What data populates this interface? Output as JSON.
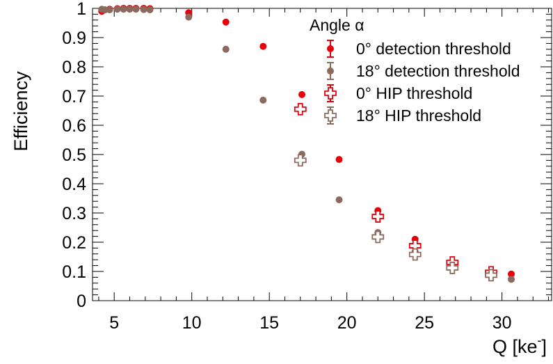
{
  "chart_data": {
    "type": "scatter",
    "xlabel": "Q [ke",
    "xlabel_sup": "-",
    "ylabel": "Efficiency",
    "xlim": [
      3.6,
      33.2
    ],
    "ylim": [
      0,
      1
    ],
    "x_ticks": [
      5,
      10,
      15,
      20,
      25,
      30
    ],
    "y_ticks": [
      0,
      0.1,
      0.2,
      0.3,
      0.4,
      0.5,
      0.6,
      0.7,
      0.8,
      0.9,
      1
    ],
    "y_tick_labels": [
      "0",
      "0.1",
      "0.2",
      "0.3",
      "0.4",
      "0.5",
      "0.6",
      "0.7",
      "0.8",
      "0.9",
      "1"
    ],
    "grid": false,
    "legend": {
      "title": "Angle α",
      "position": "top-right"
    },
    "series": [
      {
        "name": "0° detection threshold",
        "marker": "filled-circle",
        "color": "#e8000b",
        "points": [
          [
            4.2,
            0.99
          ],
          [
            4.4,
            0.995
          ],
          [
            4.7,
            0.997
          ],
          [
            5.2,
            0.999
          ],
          [
            5.6,
            1.0
          ],
          [
            6.0,
            1.0
          ],
          [
            6.4,
            1.0
          ],
          [
            6.9,
            1.0
          ],
          [
            7.3,
            0.999
          ],
          [
            9.8,
            0.985
          ],
          [
            12.2,
            0.953
          ],
          [
            14.6,
            0.87
          ],
          [
            17.1,
            0.705
          ],
          [
            19.5,
            0.483
          ],
          [
            22.0,
            0.308
          ],
          [
            24.4,
            0.21
          ],
          [
            30.6,
            0.091
          ]
        ]
      },
      {
        "name": "18° detection threshold",
        "marker": "filled-circle",
        "color": "#8c6b5e",
        "points": [
          [
            4.2,
            0.997
          ],
          [
            4.4,
            0.995
          ],
          [
            4.7,
            0.995
          ],
          [
            5.2,
            0.997
          ],
          [
            5.6,
            0.997
          ],
          [
            6.0,
            0.997
          ],
          [
            6.4,
            0.997
          ],
          [
            6.9,
            0.996
          ],
          [
            7.3,
            0.995
          ],
          [
            9.8,
            0.97
          ],
          [
            12.2,
            0.86
          ],
          [
            14.6,
            0.686
          ],
          [
            17.1,
            0.501
          ],
          [
            19.5,
            0.345
          ],
          [
            22.0,
            0.233
          ],
          [
            24.4,
            0.168
          ],
          [
            30.6,
            0.073
          ]
        ]
      },
      {
        "name": "0° HIP threshold",
        "marker": "open-cross",
        "color": "#e8000b",
        "points": [
          [
            17.0,
            0.655
          ],
          [
            22.0,
            0.288
          ],
          [
            24.4,
            0.188
          ],
          [
            26.8,
            0.131
          ],
          [
            29.3,
            0.097
          ]
        ]
      },
      {
        "name": "18° HIP threshold",
        "marker": "open-cross",
        "color": "#8c6b5e",
        "points": [
          [
            17.0,
            0.48
          ],
          [
            22.0,
            0.218
          ],
          [
            24.4,
            0.158
          ],
          [
            26.8,
            0.112
          ],
          [
            29.3,
            0.087
          ]
        ]
      }
    ]
  }
}
